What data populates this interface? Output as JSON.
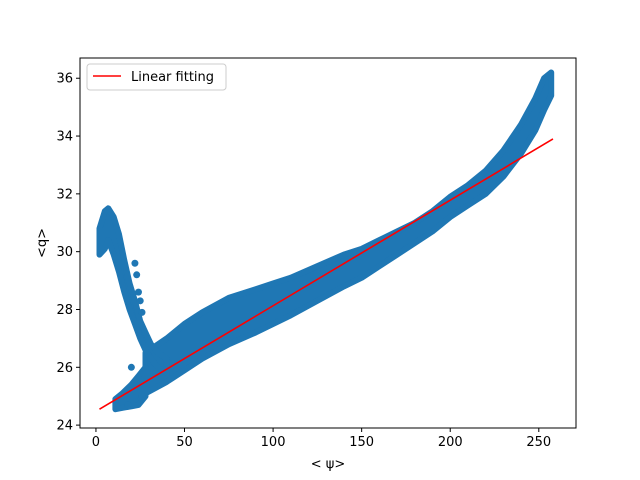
{
  "chart_data": {
    "type": "scatter",
    "xlabel": "< ψ>",
    "ylabel": "<q>",
    "xlim": [
      -9,
      271
    ],
    "ylim": [
      23.9,
      36.7
    ],
    "xticks": [
      0,
      50,
      100,
      150,
      200,
      250
    ],
    "yticks": [
      24,
      26,
      28,
      30,
      32,
      34,
      36
    ],
    "grid": false,
    "legend": {
      "placement": "top-left",
      "entries": [
        {
          "label": "Linear fitting",
          "color": "#ff0000"
        }
      ]
    },
    "scatter_color": "#1f77b4",
    "fit_color": "#ff0000",
    "series": [
      {
        "kind": "scatter",
        "band_points": [
          {
            "x": 28,
            "low": 25.1,
            "high": 26.5
          },
          {
            "x": 40,
            "low": 25.5,
            "high": 27.0
          },
          {
            "x": 50,
            "low": 25.9,
            "high": 27.5
          },
          {
            "x": 60,
            "low": 26.3,
            "high": 27.9
          },
          {
            "x": 75,
            "low": 26.8,
            "high": 28.4
          },
          {
            "x": 90,
            "low": 27.2,
            "high": 28.7
          },
          {
            "x": 100,
            "low": 27.5,
            "high": 28.9
          },
          {
            "x": 110,
            "low": 27.8,
            "high": 29.1
          },
          {
            "x": 125,
            "low": 28.3,
            "high": 29.5
          },
          {
            "x": 140,
            "low": 28.8,
            "high": 29.9
          },
          {
            "x": 150,
            "low": 29.1,
            "high": 30.1
          },
          {
            "x": 160,
            "low": 29.5,
            "high": 30.4
          },
          {
            "x": 170,
            "low": 29.9,
            "high": 30.7
          },
          {
            "x": 180,
            "low": 30.3,
            "high": 31.0
          },
          {
            "x": 190,
            "low": 30.7,
            "high": 31.4
          },
          {
            "x": 200,
            "low": 31.2,
            "high": 31.9
          },
          {
            "x": 210,
            "low": 31.6,
            "high": 32.3
          },
          {
            "x": 220,
            "low": 32.0,
            "high": 32.8
          },
          {
            "x": 230,
            "low": 32.6,
            "high": 33.5
          },
          {
            "x": 240,
            "low": 33.4,
            "high": 34.4
          },
          {
            "x": 248,
            "low": 34.2,
            "high": 35.3
          },
          {
            "x": 253,
            "low": 34.9,
            "high": 36.0
          },
          {
            "x": 257,
            "low": 35.4,
            "high": 36.2
          }
        ],
        "branch_points": [
          {
            "x": 2,
            "low": 29.9,
            "high": 30.8
          },
          {
            "x": 5,
            "low": 30.1,
            "high": 31.4
          },
          {
            "x": 7,
            "low": 30.4,
            "high": 31.5
          },
          {
            "x": 10,
            "low": 29.9,
            "high": 31.2
          },
          {
            "x": 13,
            "low": 29.3,
            "high": 30.6
          },
          {
            "x": 16,
            "low": 28.6,
            "high": 29.7
          },
          {
            "x": 19,
            "low": 28.0,
            "high": 28.9
          },
          {
            "x": 22,
            "low": 27.5,
            "high": 28.3
          },
          {
            "x": 25,
            "low": 27.0,
            "high": 27.6
          },
          {
            "x": 28,
            "low": 26.6,
            "high": 27.2
          },
          {
            "x": 31,
            "low": 26.3,
            "high": 26.8
          },
          {
            "x": 35,
            "low": 26.0,
            "high": 26.5
          },
          {
            "x": 40,
            "low": 25.8,
            "high": 26.3
          }
        ],
        "lower_tail_points": [
          {
            "x": 11,
            "low": 24.55,
            "high": 24.9
          },
          {
            "x": 15,
            "low": 24.6,
            "high": 25.1
          },
          {
            "x": 20,
            "low": 24.65,
            "high": 25.4
          },
          {
            "x": 24,
            "low": 24.7,
            "high": 25.7
          },
          {
            "x": 28,
            "low": 25.0,
            "high": 26.0
          }
        ],
        "outliers": [
          {
            "x": 22,
            "y": 29.6
          },
          {
            "x": 23,
            "y": 29.2
          },
          {
            "x": 24,
            "y": 28.6
          },
          {
            "x": 25,
            "y": 28.3
          },
          {
            "x": 26,
            "y": 27.9
          },
          {
            "x": 20,
            "y": 26.0
          },
          {
            "x": 26,
            "y": 25.0
          },
          {
            "x": 18,
            "y": 24.7
          }
        ]
      },
      {
        "kind": "line",
        "name": "Linear fitting",
        "x": [
          2,
          258
        ],
        "y": [
          24.55,
          33.9
        ]
      }
    ]
  }
}
